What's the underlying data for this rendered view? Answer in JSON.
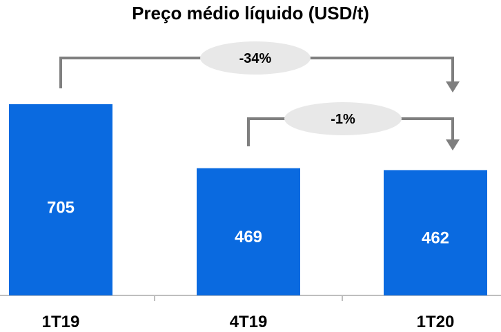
{
  "chart_data": {
    "type": "bar",
    "title": "Preço médio líquido (USD/t)",
    "categories": [
      "1T19",
      "4T19",
      "1T20"
    ],
    "values": [
      705,
      469,
      462
    ],
    "xlabel": "",
    "ylabel": "",
    "grid": false,
    "legend": "none",
    "annotations": [
      {
        "label": "-34%",
        "from": "1T19",
        "to": "1T20"
      },
      {
        "label": "-1%",
        "from": "4T19",
        "to": "1T20"
      }
    ]
  },
  "colors": {
    "bar": "#0A6AE0",
    "bar_label": "#ffffff",
    "bracket": "#7f7f7f",
    "bubble": "#e8e8e8",
    "axis": "#bfbfbf"
  }
}
